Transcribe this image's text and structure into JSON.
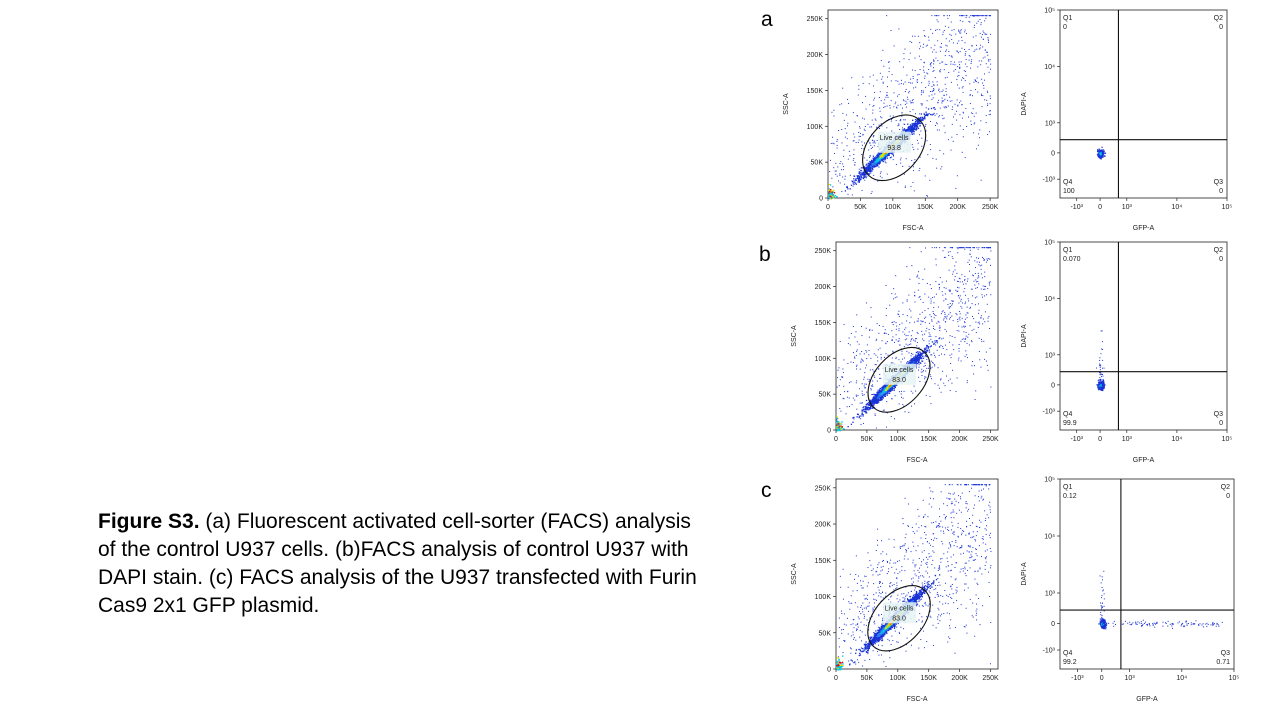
{
  "caption": {
    "label": "Figure S3.",
    "text": " (a) Fluorescent activated cell-sorter (FACS) analysis of the control U937 cells. (b)FACS analysis of control U937 with DAPI stain. (c) FACS analysis of the U937 transfected with Furin Cas9 2x1 GFP plasmid."
  },
  "chart_data": [
    {
      "panel": "a",
      "type": "scatter",
      "xlabel": "FSC-A",
      "ylabel": "SSC-A",
      "xticks": [
        "0",
        "50K",
        "100K",
        "150K",
        "200K",
        "250K"
      ],
      "yticks": [
        "0",
        "50K",
        "100K",
        "150K",
        "200K",
        "250K"
      ],
      "xlim": [
        0,
        262144
      ],
      "ylim": [
        0,
        262144
      ],
      "gate": {
        "label": "Live cells",
        "value": "93.8",
        "shape": "ellipse"
      },
      "colors": [
        "#1a33d6",
        "#00c8e6",
        "#e8e000",
        "#ff7a00",
        "#e0001a"
      ]
    },
    {
      "panel": "a",
      "type": "scatter",
      "xlabel": "GFP-A",
      "ylabel": "DAPI-A",
      "xticks": [
        "-10³",
        "0",
        "10³",
        "10⁴",
        "10⁵"
      ],
      "yticks": [
        "-10³",
        "0",
        "10³",
        "10⁴",
        "10⁵"
      ],
      "scale": "biexponential",
      "quadrants": [
        {
          "name": "Q1",
          "value": "0"
        },
        {
          "name": "Q2",
          "value": "0"
        },
        {
          "name": "Q3",
          "value": "0"
        },
        {
          "name": "Q4",
          "value": "100"
        }
      ]
    },
    {
      "panel": "b",
      "type": "scatter",
      "xlabel": "FSC-A",
      "ylabel": "SSC-A",
      "xticks": [
        "0",
        "50K",
        "100K",
        "150K",
        "200K",
        "250K"
      ],
      "yticks": [
        "0",
        "50K",
        "100K",
        "150K",
        "200K",
        "250K"
      ],
      "xlim": [
        0,
        262144
      ],
      "ylim": [
        0,
        262144
      ],
      "gate": {
        "label": "Live cells",
        "value": "83.0",
        "shape": "ellipse"
      }
    },
    {
      "panel": "b",
      "type": "scatter",
      "xlabel": "GFP-A",
      "ylabel": "DAPI-A",
      "xticks": [
        "-10³",
        "0",
        "10³",
        "10⁴",
        "10⁵"
      ],
      "yticks": [
        "-10³",
        "0",
        "10³",
        "10⁴",
        "10⁵"
      ],
      "scale": "biexponential",
      "quadrants": [
        {
          "name": "Q1",
          "value": "0.070"
        },
        {
          "name": "Q2",
          "value": "0"
        },
        {
          "name": "Q3",
          "value": "0"
        },
        {
          "name": "Q4",
          "value": "99.9"
        }
      ]
    },
    {
      "panel": "c",
      "type": "scatter",
      "xlabel": "FSC-A",
      "ylabel": "SSC-A",
      "xticks": [
        "0",
        "50K",
        "100K",
        "150K",
        "200K",
        "250K"
      ],
      "yticks": [
        "0",
        "50K",
        "100K",
        "150K",
        "200K",
        "250K"
      ],
      "xlim": [
        0,
        262144
      ],
      "ylim": [
        0,
        262144
      ],
      "gate": {
        "label": "Live cells",
        "value": "83.0",
        "shape": "ellipse"
      }
    },
    {
      "panel": "c",
      "type": "scatter",
      "xlabel": "GFP-A",
      "ylabel": "DAPI-A",
      "xticks": [
        "-10³",
        "0",
        "10³",
        "10⁴",
        "10⁵"
      ],
      "yticks": [
        "-10³",
        "0",
        "10³",
        "10⁴",
        "10⁵"
      ],
      "scale": "biexponential",
      "quadrants": [
        {
          "name": "Q1",
          "value": "0.12"
        },
        {
          "name": "Q2",
          "value": "0"
        },
        {
          "name": "Q3",
          "value": "0.71"
        },
        {
          "name": "Q4",
          "value": "99.2"
        }
      ]
    }
  ]
}
